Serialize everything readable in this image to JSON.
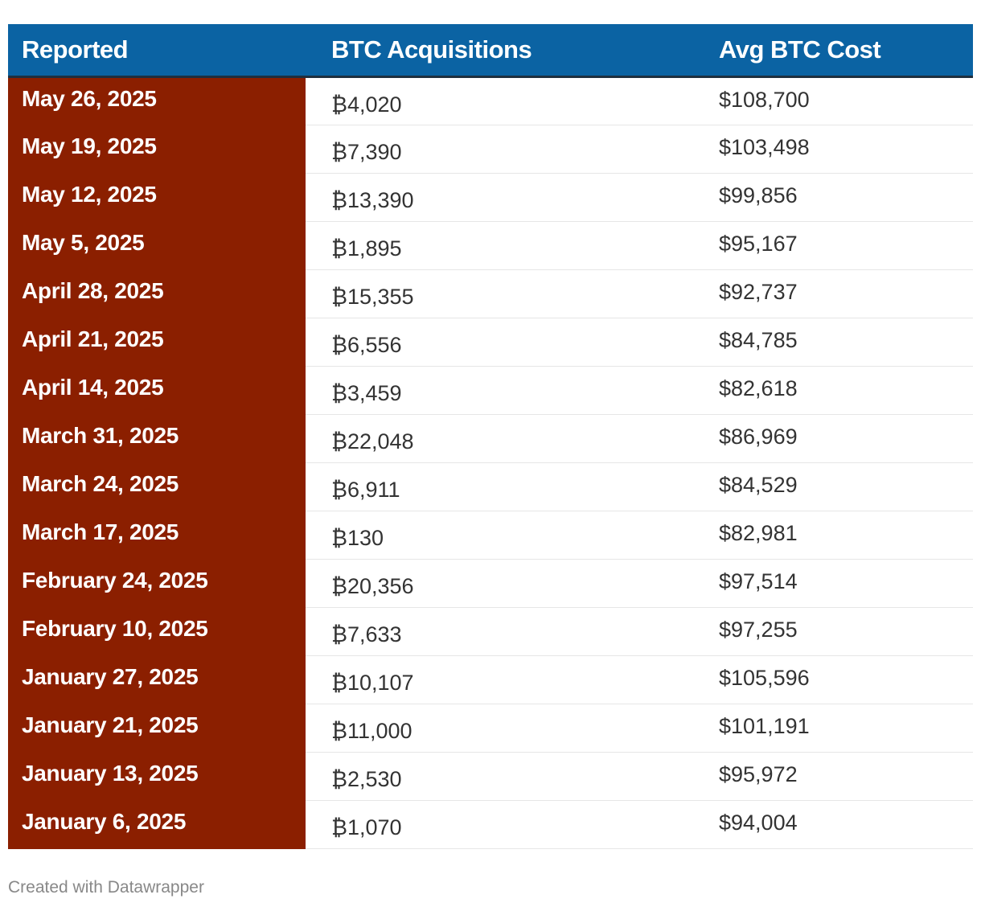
{
  "chart_data": {
    "type": "table",
    "columns": [
      "Reported",
      "BTC Acquisitions",
      "Avg BTC Cost"
    ],
    "rows": [
      {
        "reported": "May 26, 2025",
        "btc_acquisitions": "₿4,020",
        "avg_btc_cost": "$108,700"
      },
      {
        "reported": "May 19, 2025",
        "btc_acquisitions": "₿7,390",
        "avg_btc_cost": "$103,498"
      },
      {
        "reported": "May 12, 2025",
        "btc_acquisitions": "₿13,390",
        "avg_btc_cost": "$99,856"
      },
      {
        "reported": "May 5, 2025",
        "btc_acquisitions": "₿1,895",
        "avg_btc_cost": "$95,167"
      },
      {
        "reported": "April 28, 2025",
        "btc_acquisitions": "₿15,355",
        "avg_btc_cost": "$92,737"
      },
      {
        "reported": "April 21, 2025",
        "btc_acquisitions": "₿6,556",
        "avg_btc_cost": "$84,785"
      },
      {
        "reported": "April 14, 2025",
        "btc_acquisitions": "₿3,459",
        "avg_btc_cost": "$82,618"
      },
      {
        "reported": "March 31, 2025",
        "btc_acquisitions": "₿22,048",
        "avg_btc_cost": "$86,969"
      },
      {
        "reported": "March 24, 2025",
        "btc_acquisitions": "₿6,911",
        "avg_btc_cost": "$84,529"
      },
      {
        "reported": "March 17, 2025",
        "btc_acquisitions": "₿130",
        "avg_btc_cost": "$82,981"
      },
      {
        "reported": "February 24, 2025",
        "btc_acquisitions": "₿20,356",
        "avg_btc_cost": "$97,514"
      },
      {
        "reported": "February 10, 2025",
        "btc_acquisitions": "₿7,633",
        "avg_btc_cost": "$97,255"
      },
      {
        "reported": "January 27, 2025",
        "btc_acquisitions": "₿10,107",
        "avg_btc_cost": "$105,596"
      },
      {
        "reported": "January 21, 2025",
        "btc_acquisitions": "₿11,000",
        "avg_btc_cost": "$101,191"
      },
      {
        "reported": "January 13, 2025",
        "btc_acquisitions": "₿2,530",
        "avg_btc_cost": "$95,972"
      },
      {
        "reported": "January 6, 2025",
        "btc_acquisitions": "₿1,070",
        "avg_btc_cost": "$94,004"
      }
    ],
    "colors": {
      "header_background": "#0b63a3",
      "date_column_background": "#8b1f00",
      "header_text": "#ffffff",
      "body_text": "#333333"
    }
  },
  "footer": {
    "credit": "Created with Datawrapper"
  }
}
